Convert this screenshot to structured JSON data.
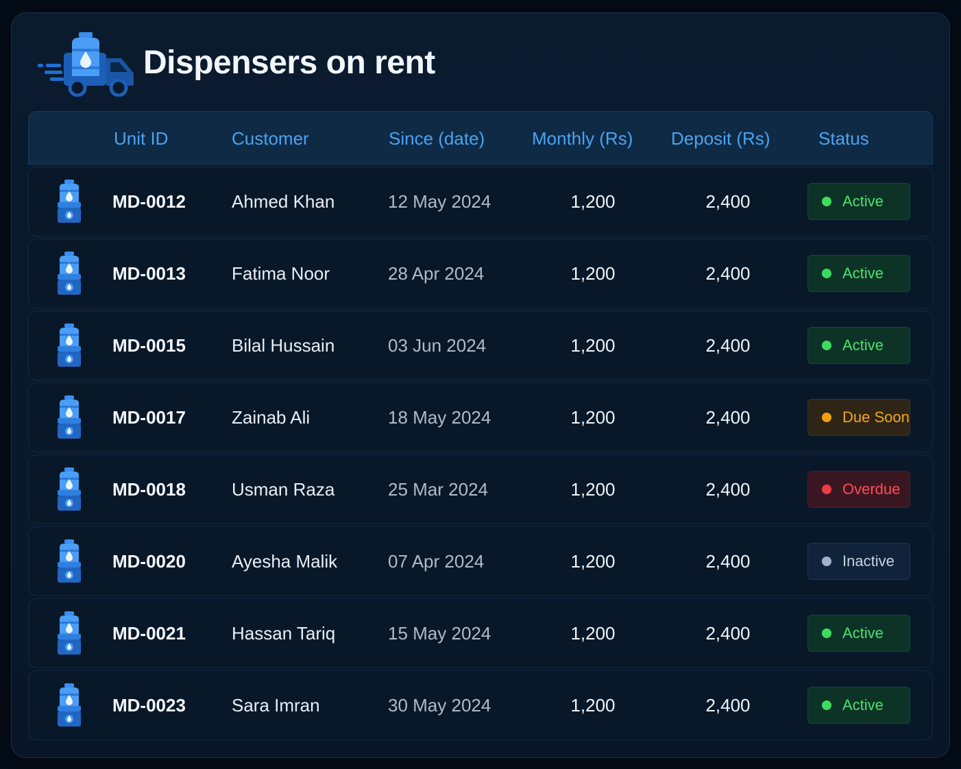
{
  "header": {
    "title": "Dispensers on rent",
    "icon": "delivery-truck-icon"
  },
  "columns": {
    "unit_id": "Unit ID",
    "customer": "Customer",
    "since": "Since (date)",
    "monthly": "Monthly (Rs)",
    "deposit": "Deposit (Rs)",
    "status": "Status"
  },
  "row_icon": "water-dispenser-icon",
  "status_colors": {
    "active": "#3ddc5f",
    "due": "#f59e0b",
    "overdue": "#ef3b46",
    "inactive": "#9fb3c8"
  },
  "rows": [
    {
      "unit_id": "MD-0012",
      "customer": "Ahmed Khan",
      "since": "12 May 2024",
      "monthly": "1,200",
      "deposit": "2,400",
      "status": "Active",
      "status_type": "active"
    },
    {
      "unit_id": "MD-0013",
      "customer": "Fatima Noor",
      "since": "28 Apr 2024",
      "monthly": "1,200",
      "deposit": "2,400",
      "status": "Active",
      "status_type": "active"
    },
    {
      "unit_id": "MD-0015",
      "customer": "Bilal Hussain",
      "since": "03 Jun 2024",
      "monthly": "1,200",
      "deposit": "2,400",
      "status": "Active",
      "status_type": "active"
    },
    {
      "unit_id": "MD-0017",
      "customer": "Zainab Ali",
      "since": "18 May 2024",
      "monthly": "1,200",
      "deposit": "2,400",
      "status": "Due Soon",
      "status_type": "due"
    },
    {
      "unit_id": "MD-0018",
      "customer": "Usman Raza",
      "since": "25 Mar 2024",
      "monthly": "1,200",
      "deposit": "2,400",
      "status": "Overdue",
      "status_type": "overdue"
    },
    {
      "unit_id": "MD-0020",
      "customer": "Ayesha Malik",
      "since": "07 Apr 2024",
      "monthly": "1,200",
      "deposit": "2,400",
      "status": "Inactive",
      "status_type": "inactive"
    },
    {
      "unit_id": "MD-0021",
      "customer": "Hassan Tariq",
      "since": "15 May 2024",
      "monthly": "1,200",
      "deposit": "2,400",
      "status": "Active",
      "status_type": "active"
    },
    {
      "unit_id": "MD-0023",
      "customer": "Sara Imran",
      "since": "30 May 2024",
      "monthly": "1,200",
      "deposit": "2,400",
      "status": "Active",
      "status_type": "active"
    }
  ]
}
